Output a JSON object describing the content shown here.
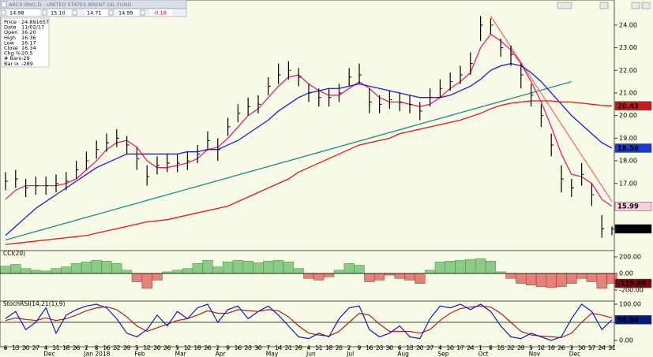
{
  "header": {
    "title": "ARCX:BNO,D - UNITED STATES BRENT OIL FUND",
    "open": "14.98",
    "high": "15.10",
    "low": "14.71",
    "close": "14.99",
    "change": "-0.18"
  },
  "info": [
    [
      "Price",
      "24.891657"
    ],
    [
      "Date",
      "11/02/17"
    ],
    [
      "Open",
      "16.20"
    ],
    [
      "High",
      "16.36"
    ],
    [
      "Low",
      "16.17"
    ],
    [
      "Close",
      "16.34"
    ],
    [
      "Chg %",
      "20.5"
    ],
    [
      "# Bars",
      "-29"
    ],
    [
      "Bar ix",
      "-289"
    ]
  ],
  "chart_data": {
    "type": "ohlc",
    "categories": [
      "6",
      "13",
      "20",
      "27",
      "4",
      "11",
      "18",
      "26",
      "2",
      "8",
      "16",
      "22",
      "29",
      "5",
      "12",
      "20",
      "26",
      "5",
      "12",
      "19",
      "26",
      "2",
      "9",
      "16",
      "23",
      "30",
      "7",
      "14",
      "21",
      "29",
      "4",
      "11",
      "18",
      "25",
      "2",
      "9",
      "16",
      "23",
      "30",
      "6",
      "13",
      "20",
      "27",
      "4",
      "10",
      "17",
      "24",
      "1",
      "8",
      "15",
      "22",
      "29",
      "5",
      "12",
      "19",
      "26",
      "3",
      "10",
      "17",
      "24",
      "31"
    ],
    "months": [
      null,
      null,
      null,
      null,
      "Dec",
      null,
      null,
      null,
      "Jan 2018",
      null,
      null,
      null,
      null,
      "Feb",
      null,
      null,
      null,
      "Mar",
      null,
      null,
      null,
      "Apr",
      null,
      null,
      null,
      null,
      "May",
      null,
      null,
      null,
      "Jun",
      null,
      null,
      null,
      "Jul",
      null,
      null,
      null,
      null,
      "Aug",
      null,
      null,
      null,
      "Sep",
      null,
      null,
      null,
      "Oct",
      null,
      null,
      null,
      null,
      "Nov",
      null,
      null,
      null,
      "Dec",
      null,
      null,
      null,
      null
    ],
    "high": [
      17.5,
      17.6,
      17.2,
      17.3,
      17.3,
      17.4,
      17.5,
      18.0,
      18.4,
      18.9,
      19.2,
      19.4,
      19.1,
      18.6,
      17.8,
      18.2,
      18.3,
      18.3,
      18.4,
      18.7,
      19.3,
      19.0,
      19.9,
      20.5,
      20.8,
      20.9,
      21.7,
      22.3,
      22.4,
      22.1,
      21.4,
      21.2,
      21.2,
      21.4,
      22.1,
      22.3,
      21.2,
      20.9,
      21.1,
      21.0,
      20.9,
      20.6,
      21.2,
      21.6,
      21.9,
      22.2,
      22.8,
      24.4,
      24.3,
      23.4,
      23.1,
      22.3,
      21.4,
      20.5,
      19.2,
      17.8,
      17.2,
      17.9,
      17.0,
      15.6,
      15.1
    ],
    "low": [
      16.7,
      16.8,
      16.4,
      16.5,
      16.5,
      16.6,
      16.7,
      17.2,
      17.6,
      18.1,
      18.4,
      18.6,
      18.3,
      17.6,
      16.9,
      17.4,
      17.5,
      17.5,
      17.6,
      17.9,
      18.5,
      18.0,
      19.1,
      19.7,
      20.0,
      20.1,
      20.9,
      21.4,
      21.6,
      21.3,
      20.6,
      20.4,
      20.4,
      20.6,
      21.3,
      21.4,
      20.1,
      20.1,
      20.3,
      20.2,
      20.1,
      19.8,
      20.4,
      20.8,
      21.1,
      21.4,
      21.8,
      23.3,
      23.6,
      22.6,
      22.2,
      21.2,
      20.4,
      19.5,
      18.2,
      16.6,
      16.4,
      16.9,
      16.0,
      14.6,
      14.71
    ],
    "close": [
      17.1,
      17.2,
      16.8,
      16.9,
      16.9,
      17.0,
      17.1,
      17.6,
      18.0,
      18.5,
      18.8,
      19.0,
      18.7,
      18.1,
      17.3,
      17.8,
      17.9,
      17.9,
      18.0,
      18.3,
      18.9,
      18.5,
      19.5,
      20.1,
      20.4,
      20.5,
      21.3,
      21.8,
      22.0,
      21.7,
      21.0,
      20.8,
      20.8,
      21.0,
      21.7,
      21.8,
      20.6,
      20.5,
      20.7,
      20.6,
      20.5,
      20.2,
      20.8,
      21.2,
      21.5,
      21.8,
      22.3,
      24.0,
      24.0,
      23.0,
      22.7,
      21.8,
      20.9,
      20.0,
      18.7,
      17.2,
      16.8,
      17.4,
      16.5,
      15.0,
      14.99
    ],
    "bar_color": "#000000",
    "close_tag_color": "#000000",
    "series": [
      {
        "color": "#e8207a",
        "tag_text": "#c00040",
        "tag_bg": "#fbd0dc",
        "values": [
          16.3,
          16.7,
          16.9,
          16.9,
          16.9,
          16.9,
          17.0,
          17.2,
          17.6,
          18.0,
          18.5,
          18.8,
          18.9,
          18.6,
          18.0,
          17.7,
          17.7,
          17.8,
          17.9,
          18.1,
          18.5,
          18.6,
          19.0,
          19.5,
          20.0,
          20.3,
          20.8,
          21.3,
          21.7,
          21.8,
          21.4,
          21.1,
          20.9,
          20.9,
          21.2,
          21.5,
          21.2,
          20.8,
          20.6,
          20.6,
          20.5,
          20.4,
          20.5,
          20.8,
          21.2,
          21.5,
          21.9,
          23.0,
          23.6,
          23.3,
          22.9,
          22.3,
          21.5,
          20.6,
          19.5,
          18.3,
          17.4,
          17.3,
          17.0,
          16.3,
          15.99
        ]
      },
      {
        "color": "#1a1ae0",
        "tag_text": "#ffffff",
        "tag_bg": "#1a3ad0",
        "values": [
          14.7,
          15.1,
          15.5,
          15.9,
          16.2,
          16.5,
          16.8,
          17.1,
          17.4,
          17.7,
          17.9,
          18.1,
          18.3,
          18.3,
          18.3,
          18.3,
          18.3,
          18.3,
          18.4,
          18.4,
          18.5,
          18.5,
          18.7,
          18.9,
          19.2,
          19.5,
          19.8,
          20.2,
          20.5,
          20.8,
          21.0,
          21.1,
          21.2,
          21.2,
          21.3,
          21.4,
          21.3,
          21.2,
          21.1,
          21.0,
          20.9,
          20.8,
          20.8,
          20.8,
          20.9,
          21.1,
          21.3,
          21.6,
          22.0,
          22.2,
          22.3,
          22.2,
          21.9,
          21.5,
          21.0,
          20.5,
          20.0,
          19.6,
          19.2,
          18.8,
          18.56
        ]
      },
      {
        "color": "#e01818",
        "tag_text": "#ffffff",
        "tag_bg": "#d01818",
        "values": [
          14.3,
          14.35,
          14.4,
          14.45,
          14.5,
          14.55,
          14.6,
          14.65,
          14.7,
          14.8,
          14.9,
          15.0,
          15.1,
          15.2,
          15.3,
          15.35,
          15.4,
          15.5,
          15.6,
          15.7,
          15.8,
          15.9,
          16.0,
          16.2,
          16.4,
          16.6,
          16.8,
          17.0,
          17.2,
          17.5,
          17.7,
          17.9,
          18.1,
          18.3,
          18.5,
          18.7,
          18.8,
          18.9,
          19.0,
          19.2,
          19.3,
          19.4,
          19.5,
          19.6,
          19.7,
          19.8,
          19.95,
          20.1,
          20.3,
          20.45,
          20.55,
          20.6,
          20.65,
          20.65,
          20.65,
          20.6,
          20.6,
          20.55,
          20.5,
          20.45,
          20.43
        ]
      }
    ],
    "trendlines": [
      {
        "color": "#1a8c8c",
        "x": [
          0,
          56
        ],
        "y": [
          14.5,
          21.5
        ]
      },
      {
        "color": "#f07070",
        "x": [
          48,
          60
        ],
        "y": [
          24.4,
          16.2
        ]
      }
    ],
    "ylim": [
      14.03,
      25.11
    ],
    "yticks": [
      {
        "value": 24,
        "label": "24.00"
      },
      {
        "value": 23,
        "label": "23.00"
      },
      {
        "value": 22,
        "label": "22.00"
      },
      {
        "value": 21,
        "label": "21.00"
      },
      {
        "value": 20,
        "label": "20.00"
      },
      {
        "value": 19,
        "label": "19.00"
      },
      {
        "value": 18,
        "label": "18.00"
      },
      {
        "value": 17,
        "label": "17.00"
      }
    ],
    "cci": {
      "type": "bar",
      "label": "CCI(20)",
      "pos_color": "#3aa03a",
      "neg_color": "#d02020",
      "tag_bg": "#7a0a0a",
      "values": [
        90,
        110,
        60,
        40,
        30,
        60,
        80,
        120,
        140,
        160,
        150,
        120,
        40,
        -100,
        -180,
        -80,
        20,
        40,
        60,
        120,
        160,
        80,
        140,
        160,
        150,
        130,
        150,
        160,
        140,
        60,
        -60,
        -80,
        -40,
        40,
        120,
        100,
        -100,
        -80,
        -20,
        -60,
        -80,
        -120,
        40,
        140,
        150,
        160,
        170,
        180,
        150,
        20,
        -60,
        -120,
        -140,
        -160,
        -170,
        -160,
        -120,
        -60,
        -100,
        -180,
        -119.6
      ],
      "tag": {
        "value": -119.6,
        "label": "-119.60"
      },
      "ylim": [
        -333,
        276
      ],
      "yticks": [
        {
          "value": 200,
          "label": "200.00"
        },
        {
          "value": 0,
          "label": "0.00"
        },
        {
          "value": -200,
          "label": "-200.00"
        }
      ],
      "zero_line": 0
    },
    "stoch": {
      "type": "line",
      "label": "StochRSI(14,21(1),9)",
      "tag_bg": "#0a1a7a",
      "series": [
        {
          "color": "#1a1ab0",
          "values": [
            60,
            80,
            30,
            50,
            90,
            20,
            70,
            85,
            95,
            100,
            90,
            60,
            20,
            10,
            30,
            70,
            40,
            80,
            60,
            90,
            100,
            50,
            85,
            95,
            60,
            80,
            95,
            70,
            40,
            10,
            5,
            20,
            10,
            60,
            90,
            95,
            30,
            10,
            20,
            40,
            10,
            5,
            60,
            95,
            90,
            100,
            85,
            100,
            80,
            40,
            10,
            5,
            20,
            10,
            0,
            10,
            60,
            100,
            80,
            30,
            56.94
          ]
        },
        {
          "color": "#b02020",
          "values": [
            55,
            62,
            58,
            55,
            62,
            55,
            60,
            70,
            82,
            90,
            93,
            85,
            65,
            40,
            25,
            35,
            45,
            55,
            60,
            70,
            82,
            75,
            75,
            85,
            82,
            80,
            85,
            82,
            65,
            40,
            20,
            15,
            12,
            25,
            50,
            75,
            70,
            45,
            25,
            25,
            25,
            20,
            30,
            55,
            75,
            88,
            92,
            95,
            92,
            75,
            50,
            25,
            15,
            12,
            10,
            8,
            20,
            50,
            75,
            70,
            62
          ]
        }
      ],
      "ylim": [
        -17.4,
        108.7
      ],
      "yticks": [
        {
          "value": 100,
          "label": "100.00"
        },
        {
          "value": 0,
          "label": "0.00"
        }
      ],
      "midline": 50
    }
  }
}
